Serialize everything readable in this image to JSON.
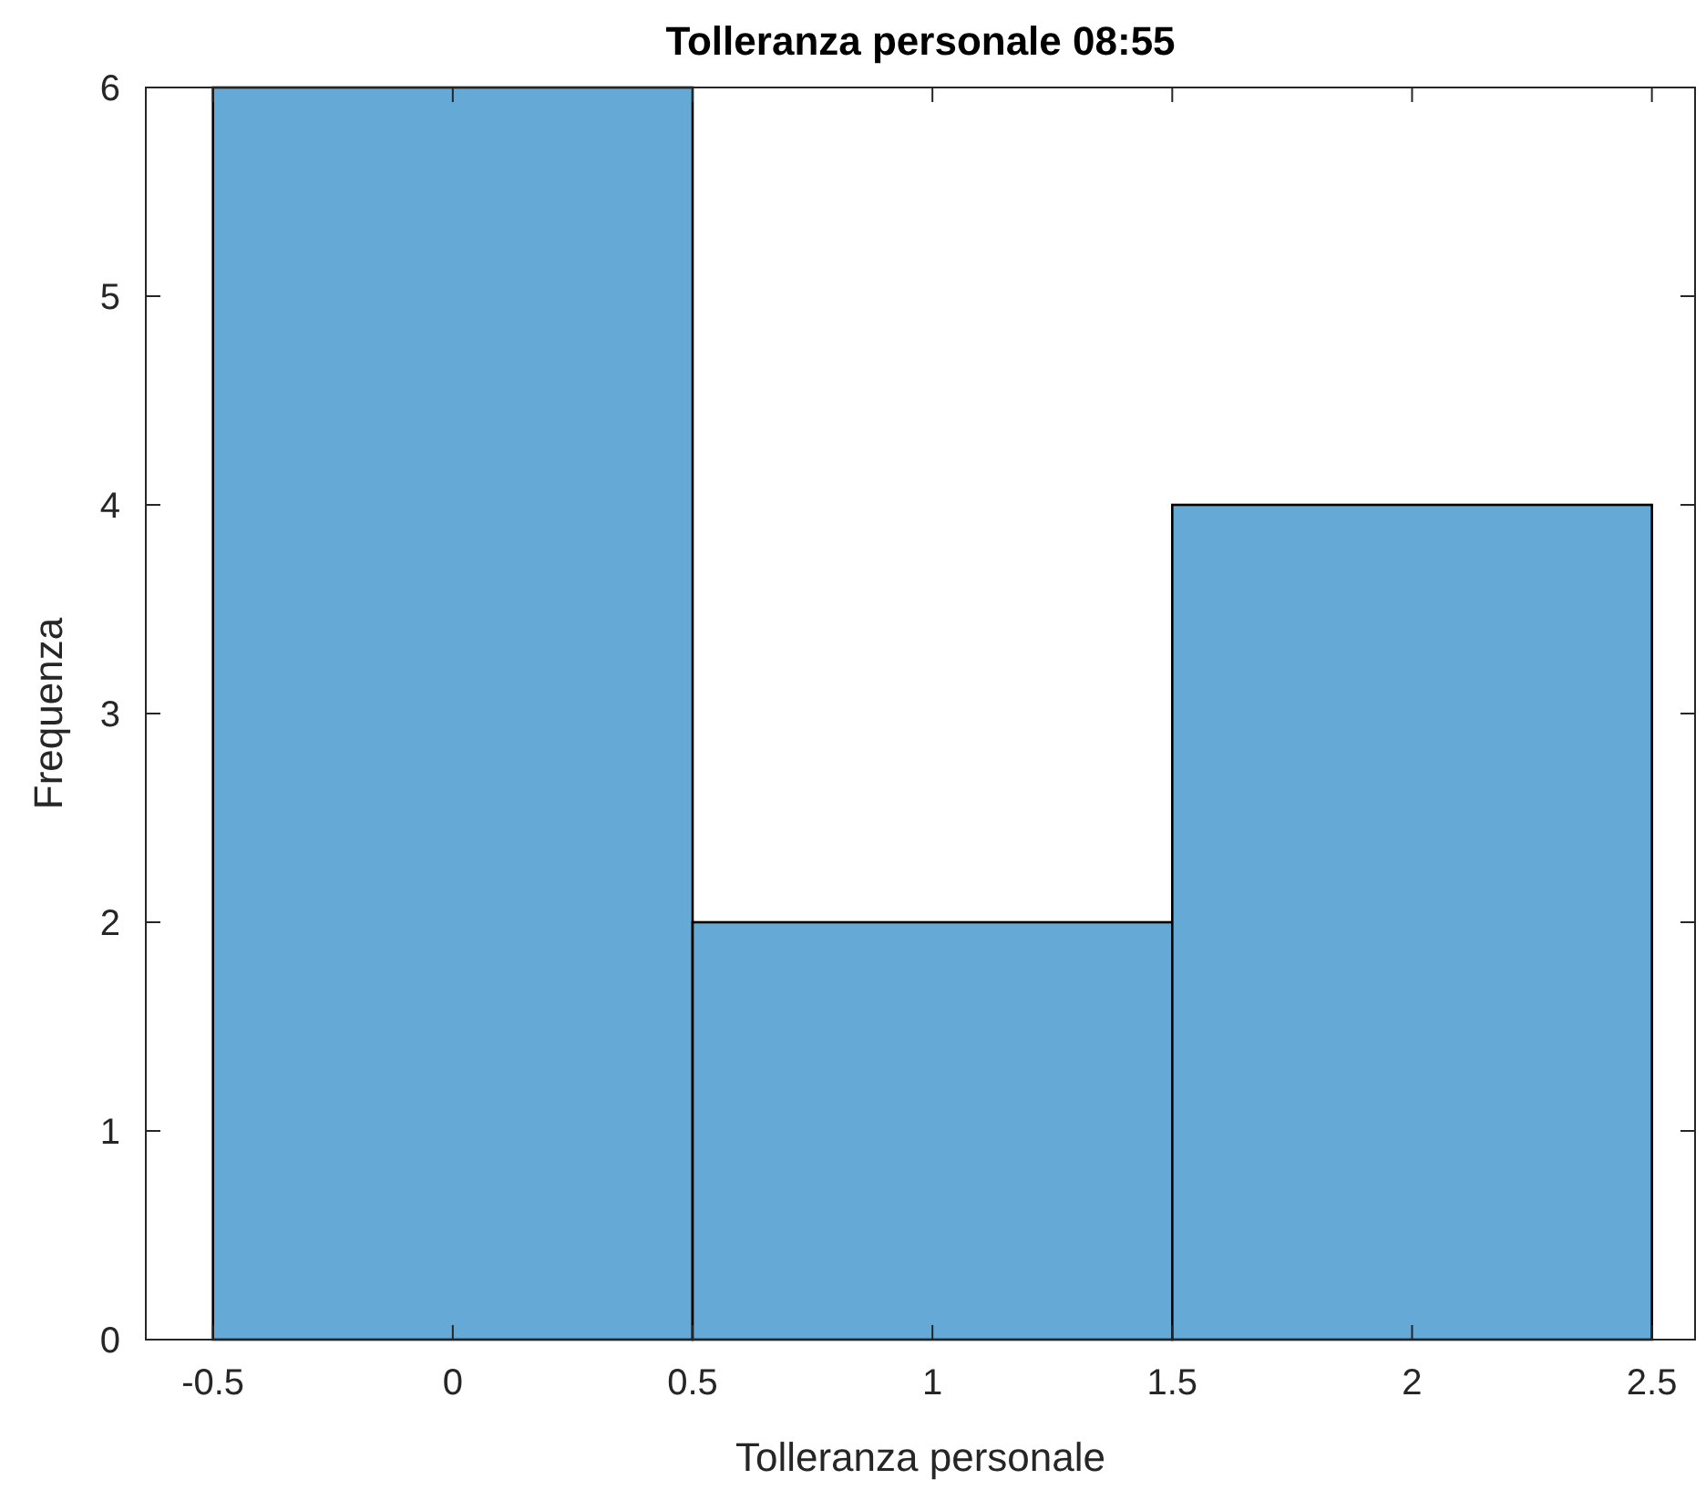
{
  "chart_data": {
    "type": "histogram",
    "title": "Tolleranza personale 08:55",
    "xlabel": "Tolleranza personale",
    "ylabel": "Frequenza",
    "bins": [
      -0.5,
      0.5,
      1.5,
      2.5
    ],
    "values": [
      6,
      2,
      4
    ],
    "color": "#65a9d7",
    "xlim": [
      -0.64,
      2.59
    ],
    "xticks": [
      -0.5,
      0,
      0.5,
      1,
      1.5,
      2,
      2.5
    ],
    "ylim": [
      0,
      6
    ],
    "yticks": [
      0,
      1,
      2,
      3,
      4,
      5,
      6
    ],
    "grid": false
  }
}
